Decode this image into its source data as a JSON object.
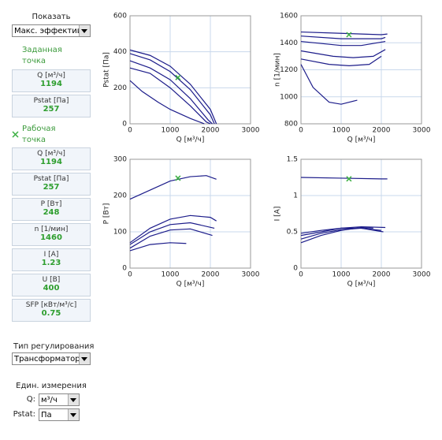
{
  "sidebar": {
    "show_label": "Показать",
    "show_select": "Макс. эффективн",
    "set_point": {
      "title": "Заданная точка",
      "fields": [
        {
          "label": "Q [м³/ч]",
          "value": 1194
        },
        {
          "label": "Pstat [Па]",
          "value": 257
        }
      ]
    },
    "work_point": {
      "title": "Рабочая точка",
      "fields": [
        {
          "label": "Q [м³/ч]",
          "value": 1194
        },
        {
          "label": "Pstat [Па]",
          "value": 257
        },
        {
          "label": "P [Вт]",
          "value": 248
        },
        {
          "label": "n [1/мин]",
          "value": 1460
        },
        {
          "label": "I [A]",
          "value": 1.23
        },
        {
          "label": "U [B]",
          "value": 400
        },
        {
          "label": "SFP [кВт/м³/с]",
          "value": 0.75
        }
      ]
    },
    "control_label": "Тип регулирования",
    "control_select": "Трансформатор",
    "units_label": "Един. измерения",
    "units": [
      {
        "label": "Q:",
        "select": "м³/ч"
      },
      {
        "label": "Pstat:",
        "select": "Па"
      }
    ]
  },
  "chart_data": [
    {
      "type": "line",
      "x_label": "Q [м³/ч]",
      "y_label": "Pstat [Па]",
      "xlim": [
        0,
        3000
      ],
      "ylim": [
        0,
        600
      ],
      "xticks": [
        0,
        1000,
        2000,
        3000
      ],
      "yticks": [
        0,
        200,
        400,
        600
      ],
      "grid": true,
      "series": [
        {
          "color": "#1c1c8a",
          "x": [
            0,
            500,
            1000,
            1500,
            2000,
            2150
          ],
          "values": [
            410,
            380,
            320,
            220,
            80,
            0
          ]
        },
        {
          "color": "#1c1c8a",
          "x": [
            0,
            500,
            1000,
            1500,
            2000,
            2100
          ],
          "values": [
            390,
            355,
            290,
            190,
            50,
            0
          ]
        },
        {
          "color": "#1c1c8a",
          "x": [
            0,
            500,
            1000,
            1500,
            1950,
            2050
          ],
          "values": [
            350,
            310,
            245,
            140,
            20,
            0
          ]
        },
        {
          "color": "#1c1c8a",
          "x": [
            0,
            500,
            1000,
            1500,
            1900,
            2000
          ],
          "values": [
            310,
            280,
            200,
            100,
            10,
            0
          ]
        },
        {
          "color": "#1c1c8a",
          "x": [
            0,
            300,
            700,
            1000,
            1500,
            1850
          ],
          "values": [
            240,
            180,
            120,
            80,
            30,
            0
          ]
        }
      ],
      "marker": {
        "x": 1194,
        "y": 257,
        "color": "#3cb043"
      }
    },
    {
      "type": "line",
      "x_label": "Q [м³/ч]",
      "y_label": "n [1/мин]",
      "xlim": [
        0,
        3000
      ],
      "ylim": [
        800,
        1600
      ],
      "xticks": [
        0,
        1000,
        2000,
        3000
      ],
      "yticks": [
        800,
        1000,
        1200,
        1400,
        1600
      ],
      "grid": true,
      "series": [
        {
          "color": "#1c1c8a",
          "x": [
            0,
            1000,
            2000,
            2150
          ],
          "values": [
            1480,
            1470,
            1460,
            1465
          ]
        },
        {
          "color": "#1c1c8a",
          "x": [
            0,
            1000,
            2000,
            2100
          ],
          "values": [
            1450,
            1430,
            1430,
            1440
          ]
        },
        {
          "color": "#1c1c8a",
          "x": [
            0,
            1000,
            1500,
            2100
          ],
          "values": [
            1410,
            1380,
            1380,
            1410
          ]
        },
        {
          "color": "#1c1c8a",
          "x": [
            0,
            800,
            1300,
            1800,
            2100
          ],
          "values": [
            1340,
            1300,
            1290,
            1300,
            1350
          ]
        },
        {
          "color": "#1c1c8a",
          "x": [
            0,
            700,
            1200,
            1700,
            2000
          ],
          "values": [
            1280,
            1240,
            1230,
            1240,
            1300
          ]
        },
        {
          "color": "#1c1c8a",
          "x": [
            0,
            300,
            700,
            1000,
            1400
          ],
          "values": [
            1240,
            1070,
            960,
            945,
            975
          ]
        }
      ],
      "marker": {
        "x": 1194,
        "y": 1460,
        "color": "#3cb043"
      }
    },
    {
      "type": "line",
      "x_label": "Q [м³/ч]",
      "y_label": "P [Вт]",
      "xlim": [
        0,
        3000
      ],
      "ylim": [
        0,
        300
      ],
      "xticks": [
        0,
        1000,
        2000,
        3000
      ],
      "yticks": [
        0,
        100,
        200,
        300
      ],
      "grid": true,
      "series": [
        {
          "color": "#1c1c8a",
          "x": [
            0,
            500,
            1000,
            1500,
            1900,
            2150
          ],
          "values": [
            190,
            215,
            240,
            252,
            255,
            245
          ]
        },
        {
          "color": "#1c1c8a",
          "x": [
            0,
            500,
            1000,
            1500,
            2000,
            2150
          ],
          "values": [
            70,
            110,
            135,
            145,
            140,
            130
          ]
        },
        {
          "color": "#1c1c8a",
          "x": [
            0,
            500,
            1000,
            1500,
            2100
          ],
          "values": [
            65,
            100,
            120,
            125,
            110
          ]
        },
        {
          "color": "#1c1c8a",
          "x": [
            0,
            500,
            1000,
            1500,
            2050
          ],
          "values": [
            55,
            88,
            105,
            108,
            90
          ]
        },
        {
          "color": "#1c1c8a",
          "x": [
            0,
            500,
            1000,
            1400
          ],
          "values": [
            48,
            65,
            70,
            68
          ]
        }
      ],
      "marker": {
        "x": 1194,
        "y": 248,
        "color": "#3cb043"
      }
    },
    {
      "type": "line",
      "x_label": "Q [м³/ч]",
      "y_label": "I [A]",
      "xlim": [
        0,
        3000
      ],
      "ylim": [
        0,
        1.5
      ],
      "xticks": [
        0,
        1000,
        2000,
        3000
      ],
      "yticks": [
        0,
        0.5,
        1,
        1.5
      ],
      "grid": true,
      "series": [
        {
          "color": "#1c1c8a",
          "x": [
            0,
            1000,
            2000,
            2150
          ],
          "values": [
            1.25,
            1.24,
            1.23,
            1.23
          ]
        },
        {
          "color": "#1c1c8a",
          "x": [
            0,
            500,
            1000,
            1500,
            2100
          ],
          "values": [
            0.48,
            0.52,
            0.55,
            0.57,
            0.56
          ]
        },
        {
          "color": "#1c1c8a",
          "x": [
            0,
            500,
            1000,
            1500,
            2050
          ],
          "values": [
            0.45,
            0.5,
            0.55,
            0.55,
            0.5
          ]
        },
        {
          "color": "#1c1c8a",
          "x": [
            0,
            500,
            1000,
            1500,
            2000
          ],
          "values": [
            0.4,
            0.48,
            0.53,
            0.55,
            0.52
          ]
        },
        {
          "color": "#1c1c8a",
          "x": [
            0,
            500,
            1000,
            1500,
            1800
          ],
          "values": [
            0.35,
            0.45,
            0.52,
            0.56,
            0.55
          ]
        }
      ],
      "marker": {
        "x": 1194,
        "y": 1.23,
        "color": "#3cb043"
      }
    }
  ]
}
